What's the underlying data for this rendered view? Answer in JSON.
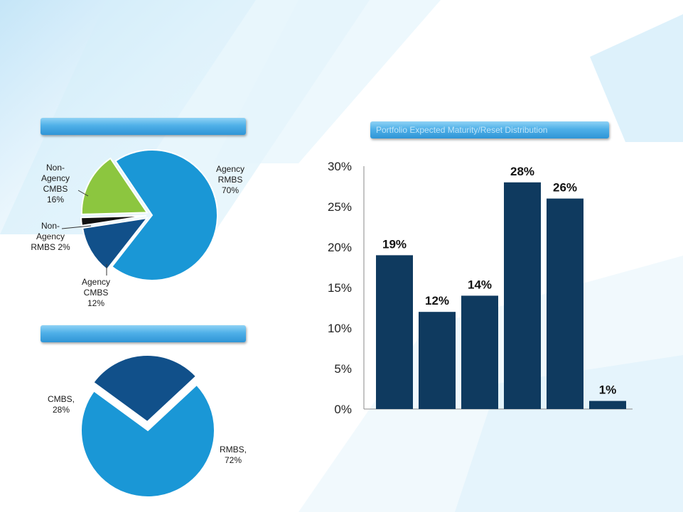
{
  "banners": {
    "left_top": "",
    "left_bottom": "",
    "right": "Portfolio Expected Maturity/Reset Distribution"
  },
  "colors": {
    "dark_blue": "#0f3a5f",
    "mid_blue": "#11508a",
    "light_blue": "#1a97d6",
    "green": "#8cc63f",
    "black": "#111111"
  },
  "chart_data": [
    {
      "type": "pie",
      "title": "",
      "slices": [
        {
          "label_lines": [
            "Agency",
            "RMBS",
            "70%"
          ],
          "value": 70,
          "color": "#1a97d6"
        },
        {
          "label_lines": [
            "Agency",
            "CMBS",
            "12%"
          ],
          "value": 12,
          "color": "#11508a"
        },
        {
          "label_lines": [
            "Non-",
            "Agency",
            "RMBS 2%"
          ],
          "value": 2,
          "color": "#111111"
        },
        {
          "label_lines": [
            "Non-",
            "Agency",
            "CMBS",
            "16%"
          ],
          "value": 16,
          "color": "#8cc63f"
        }
      ]
    },
    {
      "type": "pie",
      "title": "",
      "slices": [
        {
          "label_lines": [
            "RMBS,",
            "72%"
          ],
          "value": 72,
          "color": "#1a97d6"
        },
        {
          "label_lines": [
            "CMBS,",
            "28%"
          ],
          "value": 28,
          "color": "#11508a"
        }
      ]
    },
    {
      "type": "bar",
      "title": "Portfolio Expected Maturity/Reset Distribution",
      "categories": [
        "",
        "",
        "",
        "",
        "",
        ""
      ],
      "values": [
        19,
        12,
        14,
        28,
        26,
        1
      ],
      "data_labels": [
        "19%",
        "12%",
        "14%",
        "28%",
        "26%",
        "1%"
      ],
      "yticks": [
        "0%",
        "5%",
        "10%",
        "15%",
        "20%",
        "25%",
        "30%"
      ],
      "ylim": [
        0,
        30
      ],
      "grid": false,
      "color": "#0f3a5f"
    }
  ]
}
